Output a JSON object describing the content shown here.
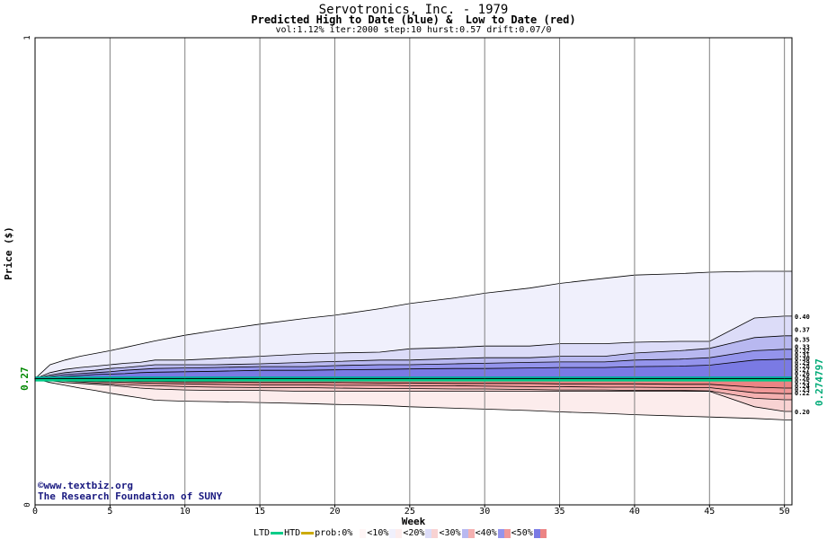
{
  "titles": {
    "main": "Servotronics, Inc. - 1979",
    "subtitle": "Predicted High to Date (blue) &  Low to Date (red)",
    "params": "vol:1.12% iter:2000 step:10 hurst:0.57 drift:0.07/0"
  },
  "credits": {
    "site": "www.textbiz.org",
    "org": "The Research Foundation of SUNY"
  },
  "legend": {
    "ltd": "LTD",
    "htd": "HTD",
    "prob": "prob:0%",
    "b10": "<10%",
    "b20": "<20%",
    "b30": "<30%",
    "b40": "<40%",
    "b50": "<50%",
    "ltd_color": "#00cc88",
    "htd_color": "#ccaa00"
  },
  "chart_data": {
    "type": "area",
    "title": "Servotronics, Inc. - 1979",
    "xlabel": "Week",
    "ylabel": "Price ($)",
    "xlim": [
      0,
      50.5
    ],
    "ylim": [
      0,
      1
    ],
    "x_ticks": [
      0,
      5,
      10,
      15,
      20,
      25,
      30,
      35,
      40,
      45,
      50
    ],
    "y_ticks": [
      0,
      1
    ],
    "current_price_label": "0.27",
    "current_price": 0.27,
    "last_price_label": "0.274797",
    "grid": true,
    "weeks": [
      0,
      1,
      2,
      3,
      4,
      5,
      6,
      7,
      8,
      10,
      12,
      15,
      18,
      20,
      23,
      25,
      28,
      30,
      33,
      35,
      38,
      40,
      43,
      45,
      48,
      50,
      50.5
    ],
    "high_bands": [
      {
        "name": "<10%",
        "color": "#f0f0fc",
        "values": [
          0.27,
          0.3,
          0.31,
          0.318,
          0.324,
          0.33,
          0.337,
          0.344,
          0.351,
          0.363,
          0.373,
          0.387,
          0.399,
          0.406,
          0.42,
          0.431,
          0.443,
          0.453,
          0.464,
          0.474,
          0.485,
          0.492,
          0.495,
          0.498,
          0.5,
          0.5,
          0.5
        ]
      },
      {
        "name": "<20%",
        "color": "#dcdcf8",
        "values": [
          0.27,
          0.283,
          0.29,
          0.294,
          0.297,
          0.3,
          0.303,
          0.305,
          0.31,
          0.31,
          0.313,
          0.318,
          0.323,
          0.325,
          0.327,
          0.334,
          0.337,
          0.34,
          0.34,
          0.345,
          0.345,
          0.348,
          0.35,
          0.35,
          0.4,
          0.404,
          0.404
        ]
      },
      {
        "name": "<30%",
        "color": "#b8b8f0",
        "values": [
          0.27,
          0.278,
          0.283,
          0.286,
          0.288,
          0.292,
          0.294,
          0.297,
          0.3,
          0.3,
          0.3,
          0.302,
          0.305,
          0.307,
          0.31,
          0.31,
          0.313,
          0.315,
          0.315,
          0.318,
          0.318,
          0.325,
          0.33,
          0.335,
          0.358,
          0.362,
          0.362
        ]
      },
      {
        "name": "<40%",
        "color": "#9494ec",
        "values": [
          0.27,
          0.275,
          0.279,
          0.281,
          0.283,
          0.285,
          0.288,
          0.29,
          0.292,
          0.293,
          0.294,
          0.296,
          0.296,
          0.298,
          0.3,
          0.3,
          0.302,
          0.303,
          0.305,
          0.306,
          0.306,
          0.31,
          0.312,
          0.315,
          0.33,
          0.333,
          0.333
        ]
      },
      {
        "name": "<50%",
        "color": "#7a7ae4",
        "values": [
          0.27,
          0.273,
          0.275,
          0.277,
          0.279,
          0.28,
          0.281,
          0.283,
          0.284,
          0.285,
          0.286,
          0.288,
          0.288,
          0.289,
          0.29,
          0.291,
          0.292,
          0.292,
          0.293,
          0.294,
          0.294,
          0.296,
          0.297,
          0.299,
          0.31,
          0.312,
          0.312
        ]
      }
    ],
    "low_bands": [
      {
        "name": "<10%",
        "color": "#fcecec",
        "values": [
          0.27,
          0.262,
          0.256,
          0.25,
          0.245,
          0.239,
          0.234,
          0.229,
          0.224,
          0.222,
          0.221,
          0.219,
          0.217,
          0.215,
          0.213,
          0.21,
          0.207,
          0.205,
          0.202,
          0.199,
          0.196,
          0.193,
          0.19,
          0.188,
          0.185,
          0.182,
          0.182
        ]
      },
      {
        "name": "<20%",
        "color": "#f8d2d2",
        "values": [
          0.27,
          0.266,
          0.262,
          0.26,
          0.258,
          0.256,
          0.253,
          0.25,
          0.248,
          0.246,
          0.245,
          0.245,
          0.243,
          0.243,
          0.243,
          0.243,
          0.243,
          0.243,
          0.243,
          0.243,
          0.243,
          0.243,
          0.243,
          0.243,
          0.21,
          0.2,
          0.2
        ]
      },
      {
        "name": "<30%",
        "color": "#f4b0b0",
        "values": [
          0.27,
          0.267,
          0.265,
          0.263,
          0.261,
          0.259,
          0.257,
          0.256,
          0.255,
          0.253,
          0.252,
          0.251,
          0.251,
          0.25,
          0.249,
          0.249,
          0.248,
          0.248,
          0.247,
          0.246,
          0.246,
          0.245,
          0.245,
          0.244,
          0.228,
          0.225,
          0.225
        ]
      },
      {
        "name": "<40%",
        "color": "#f09898",
        "values": [
          0.27,
          0.268,
          0.267,
          0.265,
          0.264,
          0.263,
          0.262,
          0.261,
          0.26,
          0.259,
          0.258,
          0.257,
          0.257,
          0.256,
          0.256,
          0.255,
          0.255,
          0.254,
          0.253,
          0.253,
          0.252,
          0.252,
          0.251,
          0.251,
          0.24,
          0.238,
          0.238
        ]
      },
      {
        "name": "<50%",
        "color": "#ec8484",
        "values": [
          0.27,
          0.269,
          0.268,
          0.267,
          0.266,
          0.265,
          0.265,
          0.264,
          0.264,
          0.263,
          0.263,
          0.262,
          0.262,
          0.262,
          0.261,
          0.261,
          0.26,
          0.26,
          0.26,
          0.259,
          0.259,
          0.259,
          0.258,
          0.258,
          0.252,
          0.25,
          0.25
        ]
      }
    ],
    "right_labels": [
      "0.40",
      "0.37",
      "0.35",
      "0.33",
      "0.32",
      "0.31",
      "0.30",
      "0.29",
      "0.28",
      "0.27",
      "0.26",
      "0.26",
      "0.25",
      "0.24",
      "0.23",
      "0.22",
      "0.20"
    ],
    "right_label_values": [
      0.404,
      0.376,
      0.355,
      0.339,
      0.331,
      0.322,
      0.314,
      0.306,
      0.298,
      0.29,
      0.282,
      0.272,
      0.264,
      0.256,
      0.248,
      0.24,
      0.2
    ]
  }
}
